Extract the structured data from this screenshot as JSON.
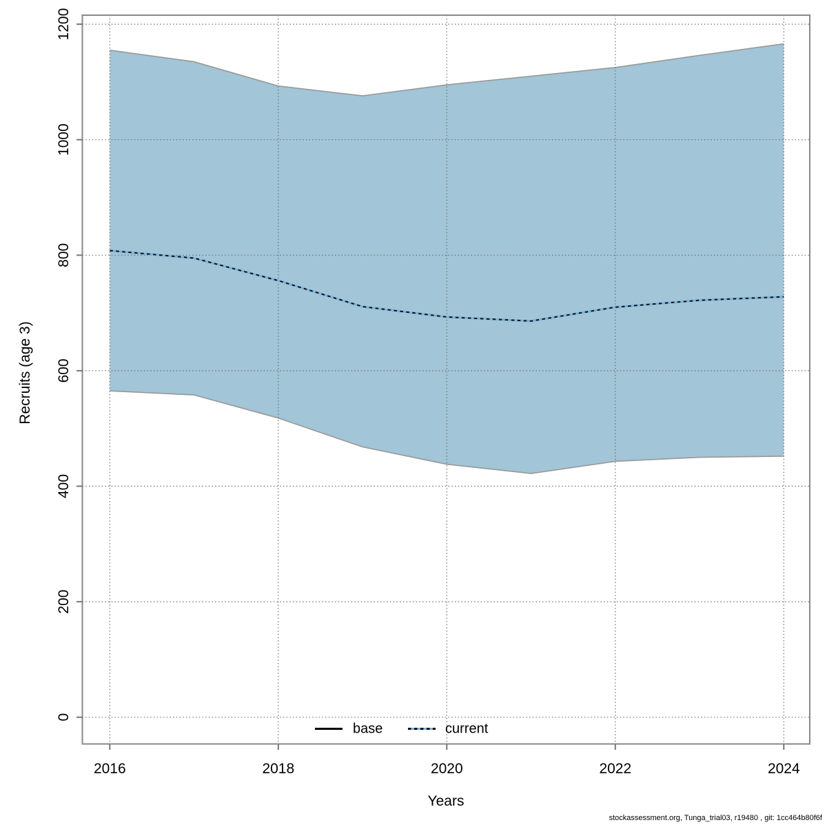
{
  "figure": {
    "ylabel": "Recruits (age 3)",
    "xlabel": "Years",
    "footer": "stockassessment.org, Tunga_trial03, r19480 , git: 1cc464b80f6f"
  },
  "legend": {
    "items": [
      {
        "label": "base",
        "style": "solid",
        "color": "#000000"
      },
      {
        "label": "current",
        "style": "dashed",
        "color": "#7cb5da"
      }
    ],
    "position": "bottom-center"
  },
  "colors": {
    "ribbon_fill": "#a2c5d7",
    "ribbon_edge": "#989898",
    "current_dash": "#101018",
    "current_underlay": "#7cb5da",
    "grid": "#6e6e6e",
    "box": "#888888",
    "tick": "#777777",
    "text": "#000000"
  },
  "chart_data": {
    "type": "line",
    "title": "",
    "xlabel": "Years",
    "ylabel": "Recruits (age 3)",
    "x": [
      2016,
      2017,
      2018,
      2019,
      2020,
      2021,
      2022,
      2023,
      2024
    ],
    "series": [
      {
        "name": "current",
        "style": "dashed",
        "values": [
          808,
          795,
          756,
          711,
          693,
          686,
          710,
          722,
          728
        ]
      },
      {
        "name": "base_ci_upper",
        "style": "band-edge",
        "values": [
          1155,
          1135,
          1093,
          1076,
          1095,
          1110,
          1125,
          1146,
          1166
        ]
      },
      {
        "name": "base_ci_lower",
        "style": "band-edge",
        "values": [
          565,
          558,
          518,
          468,
          438,
          422,
          443,
          450,
          452
        ]
      }
    ],
    "band": {
      "series": "base",
      "upper": "base_ci_upper",
      "lower": "base_ci_lower"
    },
    "xticks": [
      2016,
      2018,
      2020,
      2022,
      2024
    ],
    "yticks": [
      0,
      200,
      400,
      600,
      800,
      1000,
      1200
    ],
    "xlim": [
      2015.67,
      2024.31
    ],
    "ylim": [
      -46,
      1216
    ],
    "grid": "dotted",
    "legend_entries": [
      "base",
      "current"
    ],
    "legend_position": "bottom-center"
  }
}
